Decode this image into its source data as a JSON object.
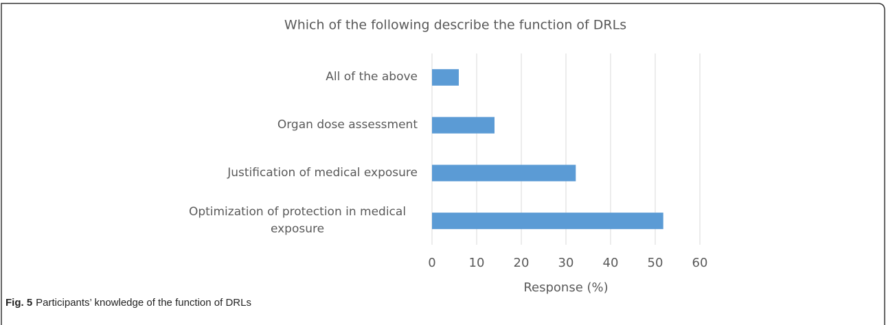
{
  "chart_data": {
    "type": "bar",
    "orientation": "horizontal",
    "title": "Which of the following describe the function of DRLs",
    "categories": [
      "All of the above",
      "Organ dose assessment",
      "Justification of medical exposure",
      "Optimization of protection in medical exposure"
    ],
    "values": [
      6,
      14,
      32.2,
      51.8
    ],
    "color": "#5b9bd5",
    "xlabel": "Response (%)",
    "xlim": [
      0,
      60
    ],
    "xticks": [
      0,
      10,
      20,
      30,
      40,
      50,
      60
    ],
    "grid": true
  },
  "caption": {
    "label": "Fig. 5",
    "text": "Participants’ knowledge of the function of DRLs"
  }
}
